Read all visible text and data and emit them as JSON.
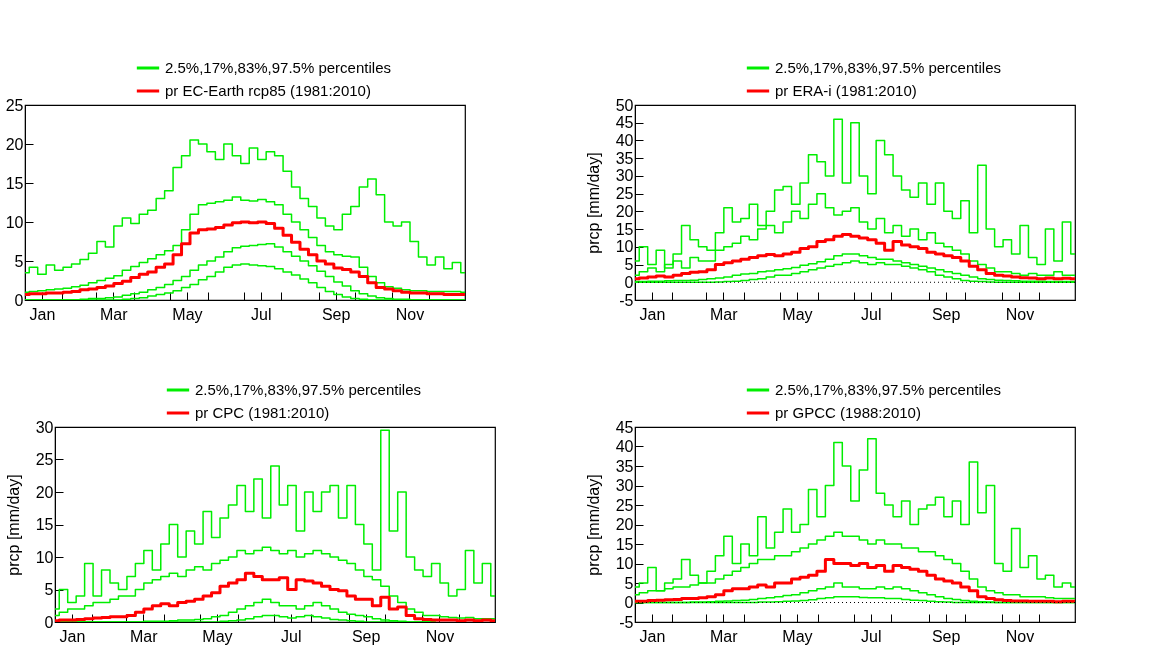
{
  "chart_data": [
    {
      "type": "step",
      "legend": "top right",
      "xlim": [
        "--01-01",
        "--12-31"
      ],
      "ylim": [
        0,
        25
      ],
      "yticks": [
        0,
        5,
        10,
        15,
        20,
        25
      ],
      "xticks": [
        {
          "value": "--01-15",
          "label": "Jan"
        },
        {
          "value": "--02-01",
          "label": null
        },
        {
          "value": "--03-01",
          "label": null
        },
        {
          "value": "--03-15",
          "label": "Mar"
        },
        {
          "value": "--04-01",
          "label": null
        },
        {
          "value": "--05-01",
          "label": null
        },
        {
          "value": "--05-15",
          "label": "May"
        },
        {
          "value": "--06-01",
          "label": null
        },
        {
          "value": "--07-01",
          "label": null
        },
        {
          "value": "--07-15",
          "label": "Jul"
        },
        {
          "value": "--08-01",
          "label": null
        },
        {
          "value": "--09-01",
          "label": null
        },
        {
          "value": "--09-15",
          "label": "Sep"
        },
        {
          "value": "--10-01",
          "label": null
        },
        {
          "value": "--11-01",
          "label": null
        },
        {
          "value": "--11-15",
          "label": "Nov"
        },
        {
          "value": "--12-01",
          "label": null
        }
      ],
      "x": [
        "--01-01",
        "--01-08",
        "--01-15",
        "--01-22",
        "--01-29",
        "--02-05",
        "--02-12",
        "--02-19",
        "--02-26",
        "--03-05",
        "--03-12",
        "--03-19",
        "--03-26",
        "--04-02",
        "--04-09",
        "--04-16",
        "--04-23",
        "--04-30",
        "--05-07",
        "--05-14",
        "--05-21",
        "--05-28",
        "--06-04",
        "--06-11",
        "--06-18",
        "--06-25",
        "--07-02",
        "--07-09",
        "--07-16",
        "--07-23",
        "--07-30",
        "--08-06",
        "--08-13",
        "--08-20",
        "--08-27",
        "--09-03",
        "--09-10",
        "--09-17",
        "--09-24",
        "--10-01",
        "--10-08",
        "--10-15",
        "--10-22",
        "--10-29",
        "--11-05",
        "--11-12",
        "--11-19",
        "--11-26",
        "--12-03",
        "--12-10",
        "--12-17",
        "--12-24",
        "--12-31"
      ],
      "series": [
        {
          "name": "2.5%,17%,83%,97.5% percentiles",
          "color": "#00ee00",
          "values": [
            0,
            0,
            0,
            0,
            0,
            0,
            0,
            0,
            0,
            0,
            0,
            0,
            0.1,
            0.2,
            0.3,
            0.5,
            0.7,
            0.9,
            1.2,
            1.6,
            2.0,
            2.6,
            3.0,
            3.6,
            4.2,
            4.5,
            4.6,
            4.5,
            4.4,
            4.3,
            4.0,
            3.6,
            3.2,
            2.7,
            2.2,
            1.6,
            1.1,
            0.7,
            0.4,
            0.2,
            0.1,
            0,
            0,
            0,
            0,
            0,
            0,
            0,
            0,
            0,
            0,
            0,
            0
          ]
        },
        {
          "color": "#00ee00",
          "values": [
            0,
            0,
            0,
            0,
            0,
            0,
            0,
            0.1,
            0.2,
            0.2,
            0.3,
            0.4,
            0.6,
            0.8,
            1.0,
            1.3,
            1.6,
            2.0,
            2.5,
            3.0,
            3.8,
            4.5,
            5.0,
            5.5,
            6.2,
            6.7,
            6.9,
            7.0,
            7.1,
            7.2,
            6.8,
            6.2,
            5.6,
            5.0,
            4.4,
            3.7,
            3.0,
            2.3,
            1.8,
            1.2,
            0.8,
            0.5,
            0.3,
            0.2,
            0.1,
            0.1,
            0,
            0,
            0,
            0,
            0,
            0,
            0
          ]
        },
        {
          "color": "#00ee00",
          "values": [
            1.0,
            1.1,
            1.2,
            1.3,
            1.4,
            1.5,
            1.7,
            1.9,
            2.2,
            2.5,
            2.8,
            3.1,
            3.8,
            4.3,
            4.8,
            5.3,
            5.8,
            6.3,
            7.0,
            9.0,
            11.0,
            12.2,
            12.4,
            12.6,
            12.8,
            13.2,
            12.8,
            12.7,
            12.9,
            12.6,
            12.2,
            11.0,
            10.0,
            9.0,
            8.0,
            7.0,
            6.2,
            5.8,
            5.6,
            5.5,
            4.2,
            3.0,
            2.2,
            1.7,
            1.5,
            1.3,
            1.2,
            1.2,
            1.1,
            1.1,
            1.1,
            1.1,
            1.0
          ]
        },
        {
          "color": "#00ee00",
          "values": [
            3.5,
            4.2,
            3.3,
            4.5,
            3.8,
            4.2,
            4.6,
            5.2,
            6.0,
            7.5,
            6.8,
            9.5,
            10.5,
            9.8,
            11.0,
            11.5,
            13.0,
            14.0,
            17.0,
            18.5,
            20.5,
            20.0,
            19.0,
            18.0,
            20.0,
            18.5,
            17.5,
            19.5,
            18.0,
            19.0,
            18.5,
            16.5,
            14.5,
            13.0,
            12.0,
            10.5,
            9.5,
            9.0,
            11.0,
            12.0,
            14.5,
            15.5,
            13.5,
            10.0,
            9.5,
            10.0,
            7.5,
            5.5,
            4.5,
            5.5,
            4.0,
            4.8,
            3.5
          ]
        },
        {
          "name": "pr EC-Earth rcp85 (1981:2010)",
          "color": "#ff0000",
          "values": [
            0.7,
            0.8,
            0.8,
            0.9,
            0.9,
            1.0,
            1.1,
            1.3,
            1.4,
            1.6,
            1.8,
            2.1,
            2.4,
            2.9,
            3.3,
            3.6,
            4.2,
            4.6,
            5.8,
            7.2,
            8.6,
            9.0,
            9.1,
            9.3,
            9.6,
            9.9,
            10.0,
            9.9,
            10.0,
            9.8,
            9.2,
            8.3,
            7.4,
            6.5,
            5.8,
            5.0,
            4.6,
            4.1,
            3.9,
            3.6,
            3.0,
            2.2,
            1.6,
            1.4,
            1.2,
            1.0,
            0.9,
            0.9,
            0.8,
            0.8,
            0.7,
            0.7,
            0.7
          ]
        }
      ]
    },
    {
      "type": "step",
      "legend": "top right",
      "ylabel": "prcp [mm/day]",
      "xlim": [
        "--01-01",
        "--12-31"
      ],
      "ylim": [
        -5,
        50
      ],
      "yticks": [
        -5,
        0,
        5,
        10,
        15,
        20,
        25,
        30,
        35,
        40,
        45,
        50
      ],
      "xticks": [
        {
          "value": "--01-15",
          "label": "Jan"
        },
        {
          "value": "--02-01",
          "label": null
        },
        {
          "value": "--03-01",
          "label": null
        },
        {
          "value": "--03-15",
          "label": "Mar"
        },
        {
          "value": "--04-01",
          "label": null
        },
        {
          "value": "--05-01",
          "label": null
        },
        {
          "value": "--05-15",
          "label": "May"
        },
        {
          "value": "--06-01",
          "label": null
        },
        {
          "value": "--07-01",
          "label": null
        },
        {
          "value": "--07-15",
          "label": "Jul"
        },
        {
          "value": "--08-01",
          "label": null
        },
        {
          "value": "--09-01",
          "label": null
        },
        {
          "value": "--09-15",
          "label": "Sep"
        },
        {
          "value": "--10-01",
          "label": null
        },
        {
          "value": "--11-01",
          "label": null
        },
        {
          "value": "--11-15",
          "label": "Nov"
        },
        {
          "value": "--12-01",
          "label": null
        }
      ],
      "ref_lines": [
        {
          "axis": "y",
          "value": 0,
          "color": "#000000",
          "line_style": "dotted"
        }
      ],
      "x": [
        "--01-01",
        "--01-08",
        "--01-15",
        "--01-22",
        "--01-29",
        "--02-05",
        "--02-12",
        "--02-19",
        "--02-26",
        "--03-05",
        "--03-12",
        "--03-19",
        "--03-26",
        "--04-02",
        "--04-09",
        "--04-16",
        "--04-23",
        "--04-30",
        "--05-07",
        "--05-14",
        "--05-21",
        "--05-28",
        "--06-04",
        "--06-11",
        "--06-18",
        "--06-25",
        "--07-02",
        "--07-09",
        "--07-16",
        "--07-23",
        "--07-30",
        "--08-06",
        "--08-13",
        "--08-20",
        "--08-27",
        "--09-03",
        "--09-10",
        "--09-17",
        "--09-24",
        "--10-01",
        "--10-08",
        "--10-15",
        "--10-22",
        "--10-29",
        "--11-05",
        "--11-12",
        "--11-19",
        "--11-26",
        "--12-03",
        "--12-10",
        "--12-17",
        "--12-24",
        "--12-31"
      ],
      "series": [
        {
          "name": "2.5%,17%,83%,97.5% percentiles",
          "color": "#00ee00",
          "values": [
            0,
            0,
            0,
            0,
            0,
            0,
            0,
            0,
            0,
            0,
            0.1,
            0.2,
            0.3,
            0.5,
            0.8,
            1,
            1.5,
            2,
            2,
            2.5,
            3,
            3.5,
            4,
            4.5,
            5,
            5.5,
            6,
            5.5,
            5,
            5.5,
            5,
            5,
            4.5,
            4,
            3.5,
            3,
            2,
            1.5,
            1,
            0.5,
            0.3,
            0.2,
            0.1,
            0,
            0,
            0,
            0,
            0,
            0,
            0,
            0,
            0,
            0
          ]
        },
        {
          "color": "#00ee00",
          "values": [
            0.2,
            0.2,
            0.3,
            0.3,
            0.4,
            0.5,
            0.5,
            0.6,
            0.8,
            1,
            1.2,
            1.5,
            2,
            2.3,
            2.5,
            3,
            3.2,
            3.5,
            3.8,
            4.2,
            4.8,
            5.2,
            5.8,
            6.5,
            7.5,
            8,
            8,
            7.5,
            7,
            6.5,
            6.5,
            6,
            5.5,
            5,
            4.5,
            4,
            3.5,
            3,
            2.5,
            2,
            1.5,
            1,
            0.8,
            0.6,
            0.5,
            0.4,
            0.3,
            0.3,
            0.3,
            0.2,
            0.2,
            0.2,
            0.2
          ]
        },
        {
          "color": "#00ee00",
          "values": [
            2,
            3,
            4,
            3,
            5,
            6,
            4,
            7,
            6,
            6,
            9,
            10,
            11,
            13,
            12,
            15,
            16,
            14,
            17,
            20,
            18,
            22,
            25,
            21,
            19,
            20,
            21,
            17,
            15,
            18,
            14,
            16,
            13,
            15,
            12,
            14,
            11,
            10,
            9,
            8,
            6,
            5,
            4,
            3,
            3,
            2.5,
            2,
            2.5,
            2,
            2,
            3,
            2,
            2
          ]
        },
        {
          "color": "#00ee00",
          "values": [
            6,
            10,
            5,
            9,
            4,
            8,
            16,
            12,
            10,
            9,
            14,
            21,
            17,
            18,
            22,
            16,
            20,
            26,
            27,
            22,
            28,
            36,
            34,
            30,
            46,
            28,
            45,
            30,
            25,
            40,
            36,
            30,
            26,
            24,
            28,
            22,
            28,
            20,
            18,
            23,
            14,
            33,
            15,
            10,
            12,
            8,
            16,
            7,
            5,
            15,
            6,
            17,
            8
          ]
        },
        {
          "name": "pr ERA-i  (1981:2010)",
          "color": "#ff0000",
          "values": [
            1,
            1.2,
            1.5,
            1.8,
            1.5,
            2,
            2.5,
            2.8,
            3,
            3.5,
            5,
            5.5,
            6,
            6.5,
            7,
            7.5,
            7.8,
            7.5,
            8,
            8.5,
            9.5,
            10,
            11.5,
            12,
            13,
            13.5,
            13,
            12.5,
            12,
            11,
            9,
            11.5,
            10.5,
            10,
            9.5,
            8.5,
            8,
            7.5,
            7,
            6,
            4.5,
            3.5,
            2.5,
            2,
            1.8,
            1.5,
            1.3,
            1.2,
            1,
            1.2,
            1,
            1.1,
            1
          ]
        }
      ]
    },
    {
      "type": "step",
      "legend": "top right",
      "ylabel": "prcp [mm/day]",
      "xlim": [
        "--01-01",
        "--12-31"
      ],
      "ylim": [
        0,
        30
      ],
      "yticks": [
        0,
        5,
        10,
        15,
        20,
        25,
        30
      ],
      "xticks": [
        {
          "value": "--01-15",
          "label": "Jan"
        },
        {
          "value": "--02-01",
          "label": null
        },
        {
          "value": "--03-01",
          "label": null
        },
        {
          "value": "--03-15",
          "label": "Mar"
        },
        {
          "value": "--04-01",
          "label": null
        },
        {
          "value": "--05-01",
          "label": null
        },
        {
          "value": "--05-15",
          "label": "May"
        },
        {
          "value": "--06-01",
          "label": null
        },
        {
          "value": "--07-01",
          "label": null
        },
        {
          "value": "--07-15",
          "label": "Jul"
        },
        {
          "value": "--08-01",
          "label": null
        },
        {
          "value": "--09-01",
          "label": null
        },
        {
          "value": "--09-15",
          "label": "Sep"
        },
        {
          "value": "--10-01",
          "label": null
        },
        {
          "value": "--11-01",
          "label": null
        },
        {
          "value": "--11-15",
          "label": "Nov"
        },
        {
          "value": "--12-01",
          "label": null
        }
      ],
      "x": [
        "--01-01",
        "--01-08",
        "--01-15",
        "--01-22",
        "--01-29",
        "--02-05",
        "--02-12",
        "--02-19",
        "--02-26",
        "--03-05",
        "--03-12",
        "--03-19",
        "--03-26",
        "--04-02",
        "--04-09",
        "--04-16",
        "--04-23",
        "--04-30",
        "--05-07",
        "--05-14",
        "--05-21",
        "--05-28",
        "--06-04",
        "--06-11",
        "--06-18",
        "--06-25",
        "--07-02",
        "--07-09",
        "--07-16",
        "--07-23",
        "--07-30",
        "--08-06",
        "--08-13",
        "--08-20",
        "--08-27",
        "--09-03",
        "--09-10",
        "--09-17",
        "--09-24",
        "--10-01",
        "--10-08",
        "--10-15",
        "--10-22",
        "--10-29",
        "--11-05",
        "--11-12",
        "--11-19",
        "--11-26",
        "--12-03",
        "--12-10",
        "--12-17",
        "--12-24",
        "--12-31"
      ],
      "series": [
        {
          "name": "2.5%,17%,83%,97.5% percentiles",
          "color": "#00ee00",
          "values": [
            0,
            0,
            0,
            0,
            0,
            0,
            0,
            0,
            0,
            0,
            0,
            0,
            0,
            0,
            0,
            0,
            0,
            0,
            0,
            0,
            0.1,
            0.2,
            0.3,
            0.5,
            0.8,
            1,
            1,
            0.8,
            0.6,
            0.8,
            1,
            0.8,
            0.6,
            0.4,
            0.3,
            0.2,
            0.1,
            0,
            0,
            0,
            0,
            0,
            0,
            0,
            0,
            0,
            null,
            null,
            null,
            null,
            null,
            null,
            null
          ]
        },
        {
          "color": "#00ee00",
          "values": [
            0,
            0,
            0,
            0,
            0,
            0,
            0,
            0,
            0,
            0,
            0,
            0.1,
            0.1,
            0.1,
            0.2,
            0.3,
            0.3,
            0.4,
            0.5,
            0.8,
            1,
            1.5,
            2,
            2.5,
            3,
            3.5,
            3,
            2.5,
            2.5,
            2,
            2.5,
            3,
            2.5,
            2,
            1.5,
            1.2,
            1,
            0.8,
            0.5,
            0.3,
            0.2,
            0.1,
            0,
            0,
            0,
            0,
            null,
            null,
            null,
            null,
            null,
            null,
            null
          ]
        },
        {
          "color": "#00ee00",
          "values": [
            1,
            1.5,
            2,
            2,
            2.5,
            3,
            3,
            3.5,
            4,
            4,
            5,
            6,
            6.5,
            7,
            7.5,
            7,
            8,
            8.5,
            8,
            9,
            9.5,
            10,
            11,
            10.5,
            11,
            11.5,
            11,
            10.5,
            11,
            10,
            10.5,
            11,
            10.5,
            10,
            9.5,
            9,
            8,
            7,
            6.5,
            5.5,
            4,
            3,
            2,
            1.5,
            1,
            1,
            0.8,
            0.7,
            0.6,
            0.7,
            0.5,
            0.5,
            0.5
          ]
        },
        {
          "color": "#00ee00",
          "values": [
            2,
            5,
            3,
            4,
            9,
            4,
            8,
            6,
            5,
            7,
            9,
            11,
            8,
            12,
            15,
            10,
            14,
            12,
            17,
            13,
            16,
            18,
            21,
            17,
            22,
            16,
            24,
            18,
            21,
            14,
            20,
            17,
            20,
            21,
            16,
            21,
            15,
            12,
            8,
            29.5,
            14,
            20,
            10,
            8,
            7,
            9,
            6,
            4,
            5,
            11,
            6,
            9,
            4
          ]
        },
        {
          "name": "pr CPC  (1981:2010)",
          "color": "#ff0000",
          "values": [
            0.2,
            0.3,
            0.3,
            0.4,
            0.5,
            0.6,
            0.7,
            0.8,
            0.8,
            1,
            1.5,
            2,
            2.5,
            2.8,
            2.5,
            3,
            3.2,
            3.5,
            4,
            4.5,
            5.5,
            6,
            6.5,
            7.5,
            7,
            6.5,
            6.5,
            6.8,
            5,
            6.5,
            6.3,
            6,
            5.5,
            5,
            4.8,
            4,
            3.5,
            3.5,
            2.5,
            3.8,
            2,
            2.3,
            1,
            0.5,
            0.4,
            0.3,
            0.3,
            0.3,
            0.2,
            0.3,
            0.2,
            0.3,
            0.2
          ]
        }
      ]
    },
    {
      "type": "step",
      "legend": "top right",
      "ylabel": "prcp [mm/day]",
      "xlim": [
        "--01-01",
        "--12-31"
      ],
      "ylim": [
        -5,
        45
      ],
      "yticks": [
        -5,
        0,
        5,
        10,
        15,
        20,
        25,
        30,
        35,
        40,
        45
      ],
      "xticks": [
        {
          "value": "--01-15",
          "label": "Jan"
        },
        {
          "value": "--02-01",
          "label": null
        },
        {
          "value": "--03-01",
          "label": null
        },
        {
          "value": "--03-15",
          "label": "Mar"
        },
        {
          "value": "--04-01",
          "label": null
        },
        {
          "value": "--05-01",
          "label": null
        },
        {
          "value": "--05-15",
          "label": "May"
        },
        {
          "value": "--06-01",
          "label": null
        },
        {
          "value": "--07-01",
          "label": null
        },
        {
          "value": "--07-15",
          "label": "Jul"
        },
        {
          "value": "--08-01",
          "label": null
        },
        {
          "value": "--09-01",
          "label": null
        },
        {
          "value": "--09-15",
          "label": "Sep"
        },
        {
          "value": "--10-01",
          "label": null
        },
        {
          "value": "--11-01",
          "label": null
        },
        {
          "value": "--11-15",
          "label": "Nov"
        },
        {
          "value": "--12-01",
          "label": null
        }
      ],
      "ref_lines": [
        {
          "axis": "y",
          "value": 0,
          "color": "#000000",
          "line_style": "dotted"
        }
      ],
      "x": [
        "--01-01",
        "--01-08",
        "--01-15",
        "--01-22",
        "--01-29",
        "--02-05",
        "--02-12",
        "--02-19",
        "--02-26",
        "--03-05",
        "--03-12",
        "--03-19",
        "--03-26",
        "--04-02",
        "--04-09",
        "--04-16",
        "--04-23",
        "--04-30",
        "--05-07",
        "--05-14",
        "--05-21",
        "--05-28",
        "--06-04",
        "--06-11",
        "--06-18",
        "--06-25",
        "--07-02",
        "--07-09",
        "--07-16",
        "--07-23",
        "--07-30",
        "--08-06",
        "--08-13",
        "--08-20",
        "--08-27",
        "--09-03",
        "--09-10",
        "--09-17",
        "--09-24",
        "--10-01",
        "--10-08",
        "--10-15",
        "--10-22",
        "--10-29",
        "--11-05",
        "--11-12",
        "--11-19",
        "--11-26",
        "--12-03",
        "--12-10",
        "--12-17",
        "--12-24",
        "--12-31"
      ],
      "series": [
        {
          "name": "2.5%,17%,83%,97.5% percentiles",
          "color": "#00ee00",
          "values": [
            0,
            0,
            0,
            0,
            0,
            0,
            0,
            0,
            0,
            0,
            0,
            0,
            0,
            0,
            0,
            0.1,
            0.1,
            0.2,
            0.3,
            0.4,
            0.5,
            0.7,
            1,
            1.2,
            1.5,
            1.5,
            1.5,
            1.3,
            1.2,
            1.2,
            1,
            1,
            0.8,
            0.6,
            0.5,
            0.3,
            0.2,
            0.1,
            0,
            0,
            0,
            0,
            0,
            0,
            0,
            0,
            0,
            0,
            0,
            0,
            0,
            0,
            0
          ]
        },
        {
          "color": "#00ee00",
          "values": [
            0,
            0,
            0,
            0,
            0,
            0,
            0,
            0.1,
            0.1,
            0.2,
            0.3,
            0.4,
            0.5,
            0.6,
            0.8,
            1,
            1.2,
            1.5,
            1.8,
            2,
            2.5,
            3,
            3.5,
            4,
            5,
            4,
            4,
            3.5,
            3.5,
            4,
            3.5,
            4,
            3.5,
            3,
            2.5,
            2,
            1.5,
            1,
            0.8,
            0.5,
            0.3,
            0.2,
            0.1,
            0,
            0,
            0,
            0,
            0,
            0,
            0,
            0,
            0,
            0
          ]
        },
        {
          "color": "#00ee00",
          "values": [
            2,
            2.5,
            3,
            3,
            3.5,
            4,
            4,
            4.5,
            5,
            5,
            6,
            7,
            8,
            9,
            10,
            11,
            11,
            12,
            12,
            13,
            14,
            15,
            16,
            17,
            18,
            17,
            17,
            16,
            15,
            16,
            15,
            15,
            14,
            14,
            13,
            13,
            12,
            11,
            10,
            8,
            6,
            4,
            3,
            2.5,
            2,
            2,
            1.5,
            1.5,
            1.5,
            1.2,
            1,
            1,
            1
          ]
        },
        {
          "color": "#00ee00",
          "values": [
            4,
            5,
            9,
            3,
            5,
            6,
            11,
            7,
            5,
            8,
            12,
            17,
            10,
            15,
            12,
            22,
            14,
            18,
            24,
            18,
            20,
            29,
            22,
            30,
            41,
            35,
            26,
            34,
            42,
            28,
            25,
            22,
            26,
            20,
            24,
            25,
            27,
            22,
            26,
            20,
            36,
            23,
            30,
            10,
            8,
            19,
            9,
            12,
            6,
            7,
            4,
            5,
            4
          ]
        },
        {
          "name": "pr GPCC (1988:2010)",
          "color": "#ff0000",
          "values": [
            0.3,
            0.3,
            0.5,
            0.6,
            0.7,
            0.8,
            1,
            1,
            1.2,
            1.5,
            2,
            3,
            3.5,
            3.5,
            4,
            4.5,
            4,
            5,
            5,
            6,
            6.5,
            7,
            8,
            11,
            10,
            10,
            9.5,
            10,
            9,
            9.5,
            8,
            9.5,
            9,
            8.5,
            8,
            7,
            6,
            5.5,
            5,
            4,
            3,
            1.5,
            1,
            0.7,
            0.5,
            0.4,
            0.4,
            0.3,
            0.3,
            0.3,
            0.2,
            0.3,
            0.3
          ]
        }
      ]
    }
  ]
}
